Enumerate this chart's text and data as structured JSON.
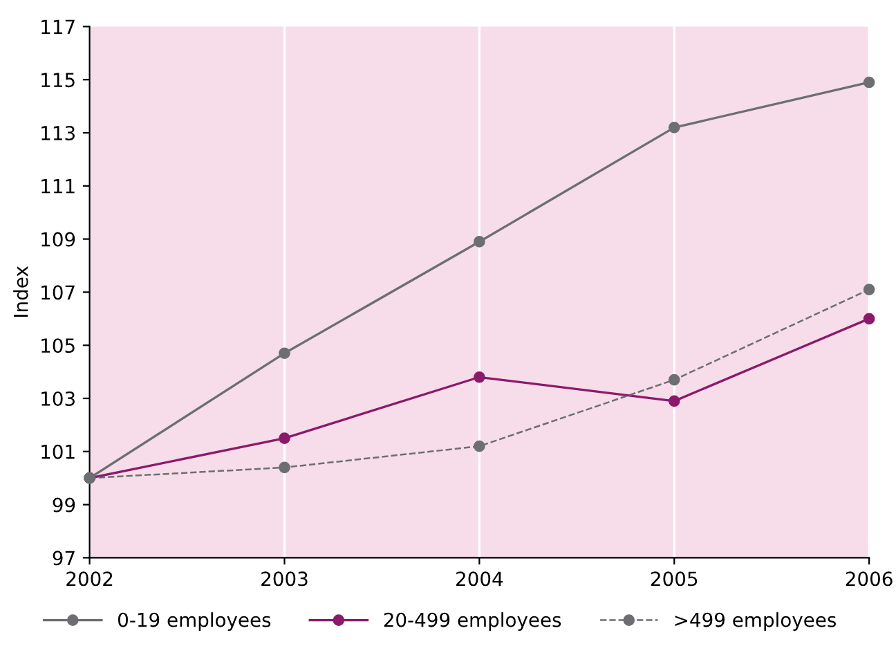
{
  "chart_data": {
    "type": "line",
    "ylabel": "Index",
    "x": [
      2002,
      2003,
      2004,
      2005,
      2006
    ],
    "series": [
      {
        "name": "0-19 employees",
        "color": "#6d6e71",
        "values": [
          100,
          104.7,
          108.9,
          113.2,
          114.9
        ],
        "line_style": "solid"
      },
      {
        "name": "20-499 employees",
        "color": "#8b1a6b",
        "values": [
          100,
          101.5,
          103.8,
          102.9,
          106.0
        ],
        "line_style": "solid"
      },
      {
        "name": ">499 employees",
        "color": "#6d6e71",
        "values": [
          100,
          100.4,
          101.2,
          103.7,
          107.1
        ],
        "line_style": "dashed"
      }
    ],
    "xlim": [
      2002,
      2006
    ],
    "xticks": [
      2002,
      2003,
      2004,
      2005,
      2006
    ],
    "ylim": [
      97,
      117
    ],
    "yticks": [
      97,
      99,
      101,
      103,
      105,
      107,
      109,
      111,
      113,
      115,
      117
    ],
    "grid": "x",
    "legend": "bottom",
    "marker": "circle"
  }
}
